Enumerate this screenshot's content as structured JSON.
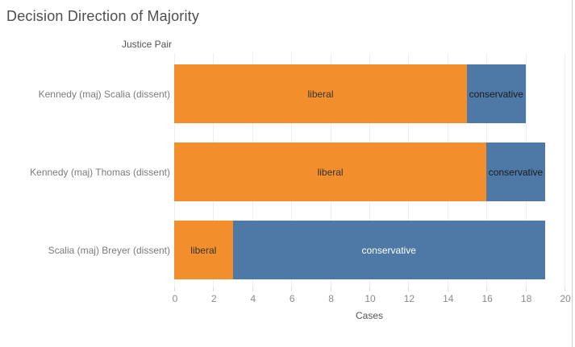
{
  "window": {
    "bg_color": "#ffffff",
    "right_border_color": "#cfcfcf"
  },
  "title": "Decision Direction of Majority",
  "chart_data": {
    "type": "bar",
    "orientation": "horizontal-stacked",
    "title": "Decision Direction of Majority",
    "row_header": "Justice Pair",
    "xlabel": "Cases",
    "xlim": [
      0,
      20
    ],
    "xtick_step": 2,
    "xticks": [
      0,
      2,
      4,
      6,
      8,
      10,
      12,
      14,
      16,
      18,
      20
    ],
    "grid": "vertical",
    "gridline_color": "#efefef",
    "tick_label_color": "#8a8a8a",
    "axis_title_color": "#555555",
    "category_label_color": "#7b7b7b",
    "categories": [
      "Kennedy (maj) Scalia (dissent)",
      "Kennedy (maj) Thomas (dissent)",
      "Scalia (maj) Breyer (dissent)"
    ],
    "series": [
      {
        "name": "liberal",
        "color": "#f28e2b",
        "values": [
          15,
          16,
          3
        ]
      },
      {
        "name": "conservative",
        "color": "#4e79a7",
        "values": [
          3,
          3,
          16
        ]
      }
    ],
    "segment_label_colors": [
      [
        "#333333",
        "#1b1b1b"
      ],
      [
        "#333333",
        "#1b1b1b"
      ],
      [
        "#333333",
        "#ffffff"
      ]
    ]
  }
}
